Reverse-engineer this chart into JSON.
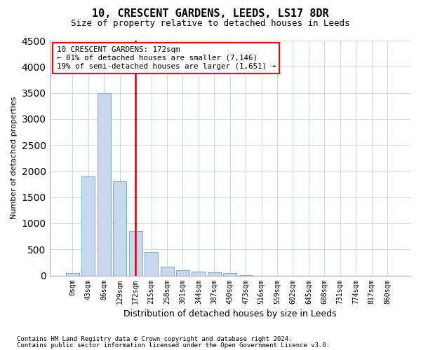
{
  "title": "10, CRESCENT GARDENS, LEEDS, LS17 8DR",
  "subtitle": "Size of property relative to detached houses in Leeds",
  "xlabel": "Distribution of detached houses by size in Leeds",
  "ylabel": "Number of detached properties",
  "annotation_title": "10 CRESCENT GARDENS: 172sqm",
  "annotation_line1": "← 81% of detached houses are smaller (7,146)",
  "annotation_line2": "19% of semi-detached houses are larger (1,651) →",
  "red_line_x": 4,
  "bar_color": "#c8d8ec",
  "bar_edge_color": "#7baad0",
  "red_line_color": "#cc0000",
  "background_color": "#ffffff",
  "grid_color": "#d0d8e0",
  "footnote1": "Contains HM Land Registry data © Crown copyright and database right 2024.",
  "footnote2": "Contains public sector information licensed under the Open Government Licence v3.0.",
  "bins": [
    "0sqm",
    "43sqm",
    "86sqm",
    "129sqm",
    "172sqm",
    "215sqm",
    "258sqm",
    "301sqm",
    "344sqm",
    "387sqm",
    "430sqm",
    "473sqm",
    "516sqm",
    "559sqm",
    "602sqm",
    "645sqm",
    "688sqm",
    "731sqm",
    "774sqm",
    "817sqm",
    "860sqm"
  ],
  "values": [
    50,
    1900,
    3500,
    1800,
    850,
    450,
    175,
    100,
    75,
    60,
    50,
    5,
    0,
    0,
    0,
    0,
    0,
    0,
    0,
    0,
    0
  ],
  "ylim": [
    0,
    4500
  ],
  "yticks": [
    0,
    500,
    1000,
    1500,
    2000,
    2500,
    3000,
    3500,
    4000,
    4500
  ]
}
